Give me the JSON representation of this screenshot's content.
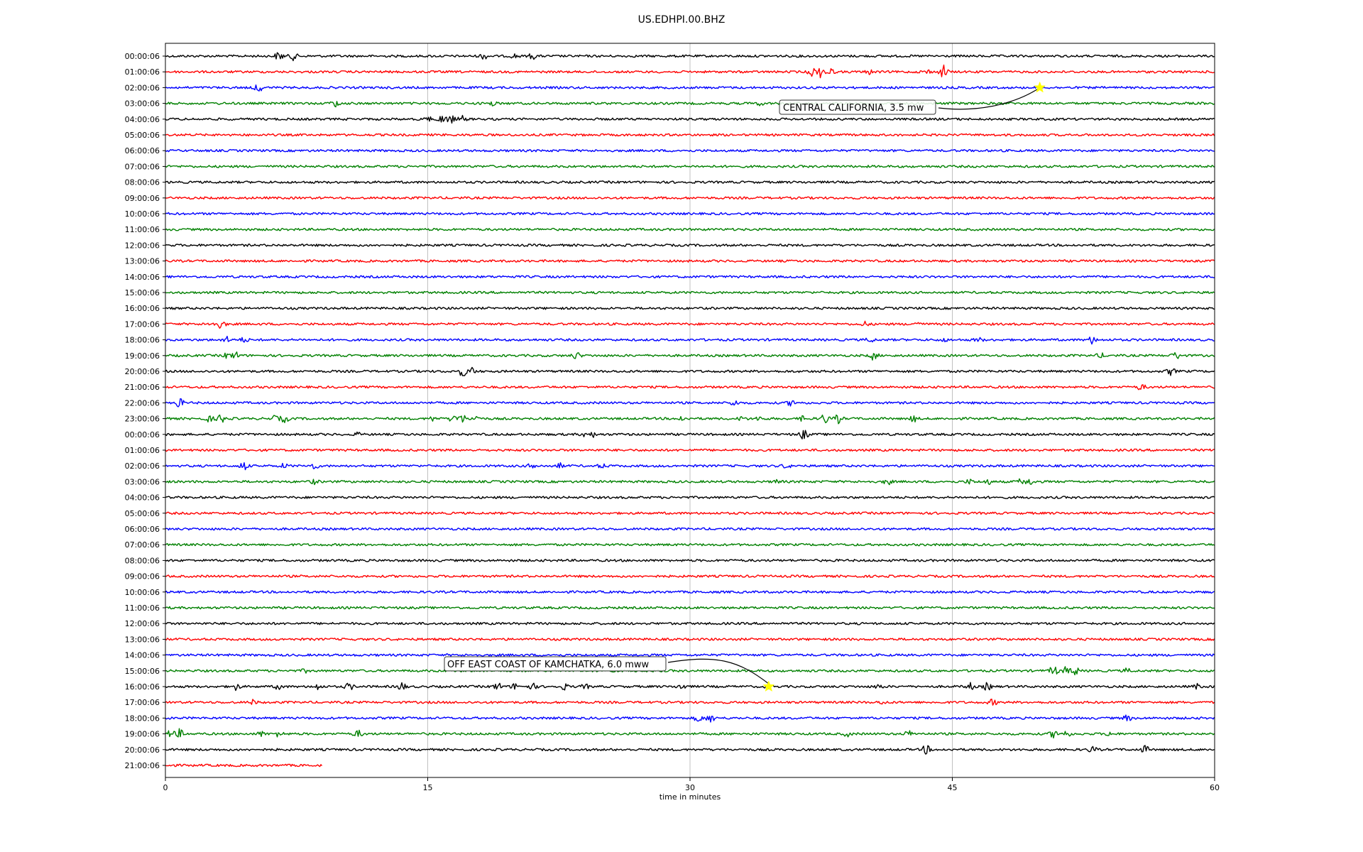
{
  "chart_data": {
    "type": "line",
    "title": "US.EDHPI.00.BHZ",
    "xlabel": "time in minutes",
    "ylabel": "",
    "xlim": [
      0,
      60
    ],
    "xticks": [
      "0",
      "15",
      "30",
      "45",
      "60"
    ],
    "grid": "vertical lines at each x tick",
    "trace_colors": [
      "#000000",
      "#ff0000",
      "#0000ff",
      "#008000"
    ],
    "row_labels": [
      "00:00:06",
      "01:00:06",
      "02:00:06",
      "03:00:06",
      "04:00:06",
      "05:00:06",
      "06:00:06",
      "07:00:06",
      "08:00:06",
      "09:00:06",
      "10:00:06",
      "11:00:06",
      "12:00:06",
      "13:00:06",
      "14:00:06",
      "15:00:06",
      "16:00:06",
      "17:00:06",
      "18:00:06",
      "19:00:06",
      "20:00:06",
      "21:00:06",
      "22:00:06",
      "23:00:06",
      "00:00:06",
      "01:00:06",
      "02:00:06",
      "03:00:06",
      "04:00:06",
      "05:00:06",
      "06:00:06",
      "07:00:06",
      "08:00:06",
      "09:00:06",
      "10:00:06",
      "11:00:06",
      "12:00:06",
      "13:00:06",
      "14:00:06",
      "15:00:06",
      "16:00:06",
      "17:00:06",
      "18:00:06",
      "19:00:06",
      "20:00:06",
      "21:00:06"
    ],
    "last_row_end_minute": 9,
    "events": [
      {
        "label": "CENTRAL CALIFORNIA, 3.5 mw",
        "row": 2,
        "minute": 50,
        "marker": "yellow star"
      },
      {
        "label": "OFF EAST COAST OF KAMCHATKA, 6.0 mww",
        "row": 40,
        "minute": 34.5,
        "marker": "yellow star"
      }
    ],
    "bursts": [
      [
        0,
        [
          [
            6.5,
            6
          ],
          [
            7.3,
            5
          ],
          [
            18.2,
            4
          ],
          [
            20,
            3
          ],
          [
            21,
            4
          ]
        ]
      ],
      [
        1,
        [
          [
            37,
            6
          ],
          [
            37.5,
            8
          ],
          [
            38,
            5
          ],
          [
            40.3,
            3
          ],
          [
            43.5,
            4
          ],
          [
            44.5,
            9
          ]
        ]
      ],
      [
        2,
        [
          [
            5.3,
            6
          ]
        ]
      ],
      [
        3,
        [
          [
            9.7,
            5
          ],
          [
            18.7,
            3
          ],
          [
            34,
            2
          ]
        ]
      ],
      [
        4,
        [
          [
            15,
            3
          ],
          [
            15.8,
            5
          ],
          [
            16.3,
            6
          ],
          [
            17,
            4
          ]
        ]
      ],
      [
        17,
        [
          [
            2.5,
            3
          ],
          [
            3.2,
            6
          ],
          [
            40,
            3
          ],
          [
            43,
            3
          ]
        ]
      ],
      [
        18,
        [
          [
            3.5,
            4
          ],
          [
            4.5,
            3
          ],
          [
            40.3,
            3
          ],
          [
            44.5,
            2
          ],
          [
            46.5,
            3
          ],
          [
            53,
            5
          ]
        ]
      ],
      [
        19,
        [
          [
            3.5,
            3
          ],
          [
            4,
            5
          ],
          [
            23.5,
            5
          ],
          [
            40.5,
            6
          ],
          [
            53.5,
            3
          ],
          [
            57.8,
            5
          ]
        ]
      ],
      [
        20,
        [
          [
            17,
            7
          ],
          [
            17.5,
            5
          ],
          [
            57.5,
            5
          ]
        ]
      ],
      [
        21,
        [
          [
            55.8,
            4
          ]
        ]
      ],
      [
        22,
        [
          [
            0.8,
            6
          ],
          [
            32.5,
            4
          ],
          [
            35.8,
            4
          ]
        ]
      ],
      [
        23,
        [
          [
            2.5,
            4
          ],
          [
            3.2,
            6
          ],
          [
            6.3,
            4
          ],
          [
            6.8,
            5
          ],
          [
            15.3,
            3
          ],
          [
            16.5,
            6
          ],
          [
            17,
            5
          ],
          [
            17.7,
            4
          ],
          [
            29.5,
            3
          ],
          [
            33,
            3
          ],
          [
            34,
            3
          ],
          [
            36.5,
            4
          ],
          [
            37.7,
            7
          ],
          [
            38.5,
            6
          ],
          [
            42.8,
            4
          ]
        ]
      ],
      [
        24,
        [
          [
            11,
            2
          ],
          [
            24,
            3
          ],
          [
            24.5,
            3
          ],
          [
            36.5,
            7
          ]
        ]
      ],
      [
        26,
        [
          [
            4.5,
            6
          ],
          [
            6.8,
            3
          ],
          [
            8.5,
            4
          ],
          [
            21,
            4
          ],
          [
            22.5,
            4
          ],
          [
            25,
            3
          ],
          [
            35.5,
            3
          ]
        ]
      ],
      [
        27,
        [
          [
            8.5,
            3
          ],
          [
            35,
            3
          ],
          [
            41.3,
            4
          ],
          [
            46,
            3
          ],
          [
            47,
            4
          ],
          [
            49,
            5
          ],
          [
            49.5,
            4
          ]
        ]
      ],
      [
        39,
        [
          [
            8,
            2
          ],
          [
            50.8,
            7
          ],
          [
            51.5,
            5
          ],
          [
            52,
            6
          ],
          [
            55,
            3
          ]
        ]
      ],
      [
        40,
        [
          [
            4,
            5
          ],
          [
            6.5,
            4
          ],
          [
            8.7,
            4
          ],
          [
            10.5,
            5
          ],
          [
            13.5,
            6
          ],
          [
            19,
            5
          ],
          [
            20,
            4
          ],
          [
            21,
            4
          ],
          [
            22.8,
            4
          ],
          [
            24,
            3
          ],
          [
            29.5,
            4
          ],
          [
            34.5,
            2
          ],
          [
            40.8,
            3
          ],
          [
            46,
            5
          ],
          [
            47,
            5
          ],
          [
            59,
            3
          ]
        ]
      ],
      [
        41,
        [
          [
            5,
            3
          ],
          [
            41,
            2
          ],
          [
            47.3,
            4
          ]
        ]
      ],
      [
        42,
        [
          [
            30.5,
            5
          ],
          [
            31.2,
            6
          ],
          [
            55,
            4
          ]
        ]
      ],
      [
        43,
        [
          [
            0.3,
            5
          ],
          [
            0.8,
            6
          ],
          [
            5.5,
            3
          ],
          [
            6.5,
            4
          ],
          [
            11,
            5
          ],
          [
            39,
            3
          ],
          [
            42.5,
            4
          ],
          [
            50.8,
            5
          ],
          [
            51.5,
            4
          ],
          [
            54,
            3
          ]
        ]
      ],
      [
        44,
        [
          [
            43.5,
            6
          ],
          [
            53,
            4
          ],
          [
            56,
            5
          ]
        ]
      ]
    ]
  }
}
